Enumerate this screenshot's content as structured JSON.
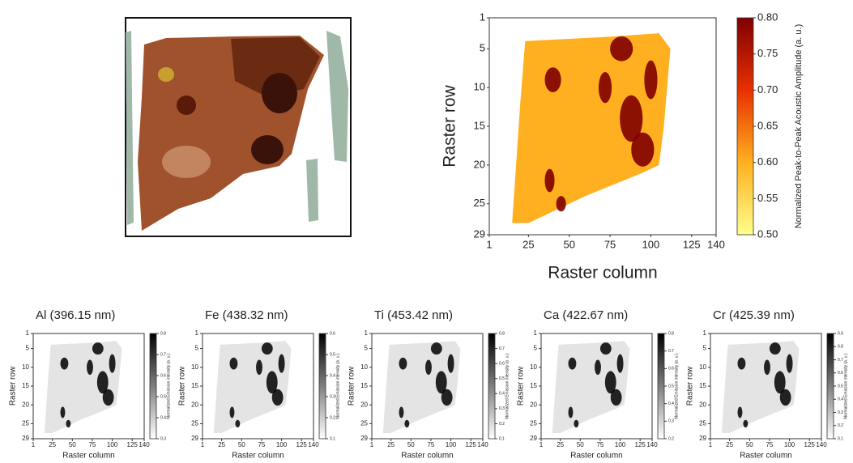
{
  "chart_data": [
    {
      "type": "heatmap",
      "xlabel": "Raster column",
      "ylabel": "Raster row",
      "xlim": [
        1,
        140
      ],
      "ylim": [
        1,
        29
      ],
      "xticks": [
        1,
        25,
        50,
        75,
        100,
        125,
        140
      ],
      "yticks": [
        1,
        5,
        10,
        15,
        20,
        25,
        29
      ],
      "colorbar_label": "Normalized Peak-to-Peak Acoustic Amplitude (a. u.)",
      "clim": [
        0.5,
        0.8
      ],
      "colorbar_ticks": [
        {
          "value": 0.5,
          "label": "0.50"
        },
        {
          "value": 0.55,
          "label": "0.55"
        },
        {
          "value": 0.6,
          "label": "0.60"
        },
        {
          "value": 0.65,
          "label": "0.65"
        },
        {
          "value": 0.7,
          "label": "0.70"
        },
        {
          "value": 0.75,
          "label": "0.75"
        },
        {
          "value": 0.8,
          "label": "0.80"
        }
      ],
      "colors": [
        "#ffff8c",
        "#ffb020",
        "#e83000",
        "#800000"
      ]
    },
    {
      "type": "heatmap",
      "title": "Al (396.15 nm)",
      "xlabel": "Raster column",
      "ylabel": "Raster row",
      "xlim": [
        1,
        140
      ],
      "ylim": [
        1,
        29
      ],
      "xticks": [
        1,
        25,
        50,
        75,
        100,
        125,
        140
      ],
      "yticks": [
        1,
        5,
        10,
        15,
        20,
        25,
        29
      ],
      "colorbar_label": "Normalized Emission intensity (a. u.)",
      "clim": [
        0.3,
        0.8
      ],
      "colorbar_ticks": [
        0.3,
        0.4,
        0.5,
        0.6,
        0.7,
        0.8
      ],
      "colors": [
        "#ffffff",
        "#000000"
      ]
    },
    {
      "type": "heatmap",
      "title": "Fe (438.32 nm)",
      "xlabel": "Raster column",
      "ylabel": "Raster row",
      "xlim": [
        1,
        140
      ],
      "ylim": [
        1,
        29
      ],
      "xticks": [
        1,
        25,
        50,
        75,
        100,
        125,
        140
      ],
      "yticks": [
        1,
        5,
        10,
        15,
        20,
        25,
        29
      ],
      "colorbar_label": "Normalized Emission intensity (a. u.)",
      "clim": [
        0.1,
        0.6
      ],
      "colorbar_ticks": [
        0.1,
        0.2,
        0.3,
        0.4,
        0.5,
        0.6
      ],
      "colors": [
        "#ffffff",
        "#000000"
      ]
    },
    {
      "type": "heatmap",
      "title": "Ti (453.42 nm)",
      "xlabel": "Raster column",
      "ylabel": "Raster row",
      "xlim": [
        1,
        140
      ],
      "ylim": [
        1,
        29
      ],
      "xticks": [
        1,
        25,
        50,
        75,
        100,
        125,
        140
      ],
      "yticks": [
        1,
        5,
        10,
        15,
        20,
        25,
        29
      ],
      "colorbar_label": "Normalized Emission intensity (a. u.)",
      "clim": [
        0.1,
        0.8
      ],
      "colorbar_ticks": [
        0.1,
        0.2,
        0.3,
        0.4,
        0.5,
        0.6,
        0.7,
        0.8
      ],
      "colors": [
        "#ffffff",
        "#000000"
      ]
    },
    {
      "type": "heatmap",
      "title": "Ca (422.67 nm)",
      "xlabel": "Raster column",
      "ylabel": "Raster row",
      "xlim": [
        1,
        140
      ],
      "ylim": [
        1,
        29
      ],
      "xticks": [
        1,
        25,
        50,
        75,
        100,
        125,
        140
      ],
      "yticks": [
        1,
        5,
        10,
        15,
        20,
        25,
        29
      ],
      "colorbar_label": "Normalized Emission intensity (a. u.)",
      "clim": [
        0.2,
        0.8
      ],
      "colorbar_ticks": [
        0.2,
        0.3,
        0.4,
        0.5,
        0.6,
        0.7,
        0.8
      ],
      "colors": [
        "#ffffff",
        "#000000"
      ]
    },
    {
      "type": "heatmap",
      "title": "Cr (425.39 nm)",
      "xlabel": "Raster column",
      "ylabel": "Raster row",
      "xlim": [
        1,
        140
      ],
      "ylim": [
        1,
        29
      ],
      "xticks": [
        1,
        25,
        50,
        75,
        100,
        125,
        140
      ],
      "yticks": [
        1,
        5,
        10,
        15,
        20,
        25,
        29
      ],
      "colorbar_label": "Normalized Emission intensity (a. u.)",
      "clim": [
        0.1,
        0.9
      ],
      "colorbar_ticks": [
        0.1,
        0.2,
        0.3,
        0.4,
        0.5,
        0.6,
        0.7,
        0.8,
        0.9
      ],
      "colors": [
        "#ffffff",
        "#000000"
      ]
    }
  ]
}
